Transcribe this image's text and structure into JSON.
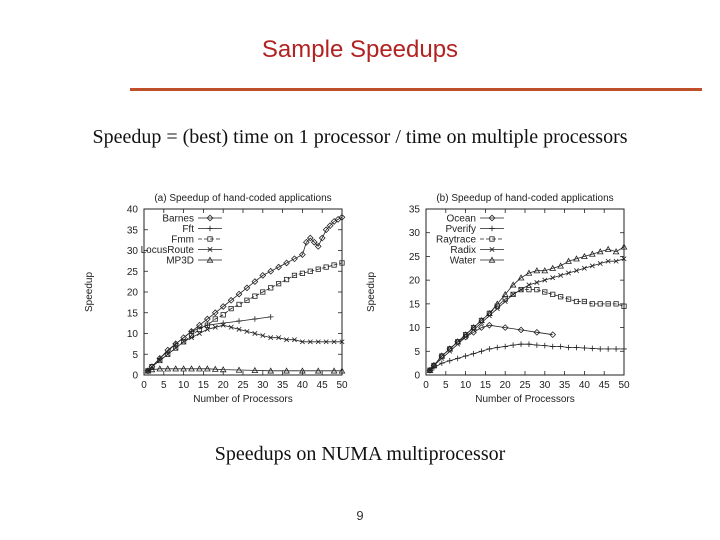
{
  "slide": {
    "title": "Sample Speedups",
    "subtitle": "Speedup = (best) time on 1 processor / time on multiple processors",
    "caption": "Speedups on NUMA multiprocessor",
    "page_number": "9",
    "title_color": "#b22222",
    "rule_color": "#c0502a"
  },
  "chart_data": [
    {
      "type": "line",
      "title": "(a) Speedup of hand-coded applications",
      "xlabel": "Number of Processors",
      "ylabel": "Speedup",
      "xlim": [
        0,
        50
      ],
      "ylim": [
        0,
        40
      ],
      "xticks": [
        0,
        5,
        10,
        15,
        20,
        25,
        30,
        35,
        40,
        45,
        50
      ],
      "yticks": [
        0,
        5,
        10,
        15,
        20,
        25,
        30,
        35,
        40
      ],
      "legend_position": "top-left",
      "series": [
        {
          "name": "Barnes",
          "marker": "diamond",
          "dash": "",
          "x": [
            1,
            2,
            4,
            6,
            8,
            10,
            12,
            14,
            16,
            18,
            20,
            22,
            24,
            26,
            28,
            30,
            32,
            34,
            36,
            38,
            40,
            41,
            42,
            43,
            44,
            45,
            46,
            47,
            48,
            49,
            50
          ],
          "y": [
            1,
            2,
            4,
            6,
            7.5,
            9,
            10.5,
            12,
            13.5,
            15,
            16.5,
            18,
            19.5,
            21,
            22.5,
            24,
            25,
            26,
            27,
            28,
            29,
            32,
            33,
            32,
            31,
            33,
            35,
            36,
            37,
            37.5,
            38
          ]
        },
        {
          "name": "Fft",
          "marker": "plus",
          "dash": "",
          "x": [
            1,
            4,
            8,
            12,
            16,
            20,
            24,
            28,
            32
          ],
          "y": [
            1,
            4,
            7.5,
            10.5,
            12,
            12.5,
            13,
            13.5,
            14
          ]
        },
        {
          "name": "Fmm",
          "marker": "square",
          "dash": "4,2",
          "x": [
            1,
            2,
            4,
            6,
            8,
            10,
            12,
            14,
            16,
            18,
            20,
            22,
            24,
            26,
            28,
            30,
            32,
            34,
            36,
            38,
            40,
            42,
            44,
            46,
            48,
            50
          ],
          "y": [
            1,
            2,
            3.5,
            5,
            6.5,
            8,
            9.5,
            11,
            12,
            13.5,
            14.5,
            16,
            17,
            18,
            19,
            20,
            21,
            22,
            23,
            24,
            24.5,
            25,
            25.5,
            26,
            26.5,
            27
          ]
        },
        {
          "name": "LocusRoute",
          "marker": "x",
          "dash": "",
          "x": [
            1,
            2,
            4,
            6,
            8,
            10,
            12,
            14,
            16,
            18,
            20,
            22,
            24,
            26,
            28,
            30,
            32,
            34,
            36,
            38,
            40,
            42,
            44,
            46,
            48,
            50
          ],
          "y": [
            1,
            2,
            3.5,
            5,
            6.5,
            8,
            9,
            10,
            11,
            11.5,
            12,
            11.5,
            11,
            10.5,
            10,
            9.5,
            9,
            9,
            8.5,
            8.5,
            8,
            8,
            8,
            8,
            8,
            8
          ]
        },
        {
          "name": "MP3D",
          "marker": "triangle",
          "dash": "",
          "x": [
            1,
            2,
            4,
            6,
            8,
            10,
            12,
            14,
            16,
            18,
            20,
            24,
            28,
            32,
            36,
            40,
            44,
            48,
            50
          ],
          "y": [
            1,
            1.3,
            1.5,
            1.5,
            1.5,
            1.5,
            1.5,
            1.5,
            1.5,
            1.4,
            1.3,
            1.2,
            1.1,
            1,
            1,
            1,
            1,
            1,
            1
          ]
        }
      ]
    },
    {
      "type": "line",
      "title": "(b) Speedup of hand-coded applications",
      "xlabel": "Number of Processors",
      "ylabel": "Speedup",
      "xlim": [
        0,
        50
      ],
      "ylim": [
        0,
        35
      ],
      "xticks": [
        0,
        5,
        10,
        15,
        20,
        25,
        30,
        35,
        40,
        45,
        50
      ],
      "yticks": [
        0,
        5,
        10,
        15,
        20,
        25,
        30,
        35
      ],
      "legend_position": "top-left",
      "series": [
        {
          "name": "Ocean",
          "marker": "diamond",
          "dash": "",
          "x": [
            1,
            2,
            4,
            6,
            8,
            10,
            12,
            14,
            16,
            20,
            24,
            28,
            32
          ],
          "y": [
            1,
            2,
            4,
            5.5,
            7,
            8,
            9,
            10,
            10.5,
            10,
            9.5,
            9,
            8.5
          ]
        },
        {
          "name": "Pverify",
          "marker": "plus",
          "dash": "",
          "x": [
            1,
            2,
            4,
            6,
            8,
            10,
            12,
            14,
            16,
            18,
            20,
            22,
            24,
            26,
            28,
            30,
            32,
            34,
            36,
            38,
            40,
            42,
            44,
            46,
            48,
            50
          ],
          "y": [
            1,
            1.5,
            2.5,
            3,
            3.5,
            4,
            4.5,
            5,
            5.5,
            5.8,
            6,
            6.3,
            6.5,
            6.5,
            6.3,
            6.2,
            6,
            6,
            5.8,
            5.8,
            5.7,
            5.6,
            5.5,
            5.5,
            5.5,
            5.5
          ]
        },
        {
          "name": "Raytrace",
          "marker": "square",
          "dash": "4,2",
          "x": [
            1,
            2,
            4,
            6,
            8,
            10,
            12,
            14,
            16,
            18,
            20,
            22,
            24,
            26,
            28,
            30,
            32,
            34,
            36,
            38,
            40,
            42,
            44,
            46,
            48,
            50
          ],
          "y": [
            1,
            2,
            4,
            5.5,
            7,
            8.5,
            10,
            11.5,
            13,
            14.5,
            16,
            17,
            18,
            18,
            18,
            17.5,
            17,
            16.5,
            16,
            15.5,
            15.5,
            15,
            15,
            15,
            15,
            14.5
          ]
        },
        {
          "name": "Radix",
          "marker": "x",
          "dash": "",
          "x": [
            1,
            2,
            4,
            6,
            8,
            10,
            12,
            14,
            16,
            18,
            20,
            22,
            24,
            26,
            28,
            30,
            32,
            34,
            36,
            38,
            40,
            42,
            44,
            46,
            48,
            50
          ],
          "y": [
            1,
            2,
            3.5,
            5,
            6.5,
            8,
            9.5,
            11,
            12.5,
            14,
            15.5,
            17,
            18,
            19,
            19.5,
            20,
            20.5,
            21,
            21.5,
            22,
            22.5,
            23,
            23.5,
            24,
            24,
            24.5
          ]
        },
        {
          "name": "Water",
          "marker": "triangle",
          "dash": "",
          "x": [
            1,
            2,
            4,
            6,
            8,
            10,
            12,
            14,
            16,
            18,
            20,
            22,
            24,
            26,
            28,
            30,
            32,
            34,
            36,
            38,
            40,
            42,
            44,
            46,
            48,
            50
          ],
          "y": [
            1,
            2,
            4,
            5.5,
            7,
            8.5,
            10,
            11.5,
            13,
            15,
            17,
            19,
            20.5,
            21.5,
            22,
            22,
            22.5,
            23,
            24,
            24.5,
            25,
            25.5,
            26,
            26.5,
            26,
            27
          ]
        }
      ]
    }
  ]
}
